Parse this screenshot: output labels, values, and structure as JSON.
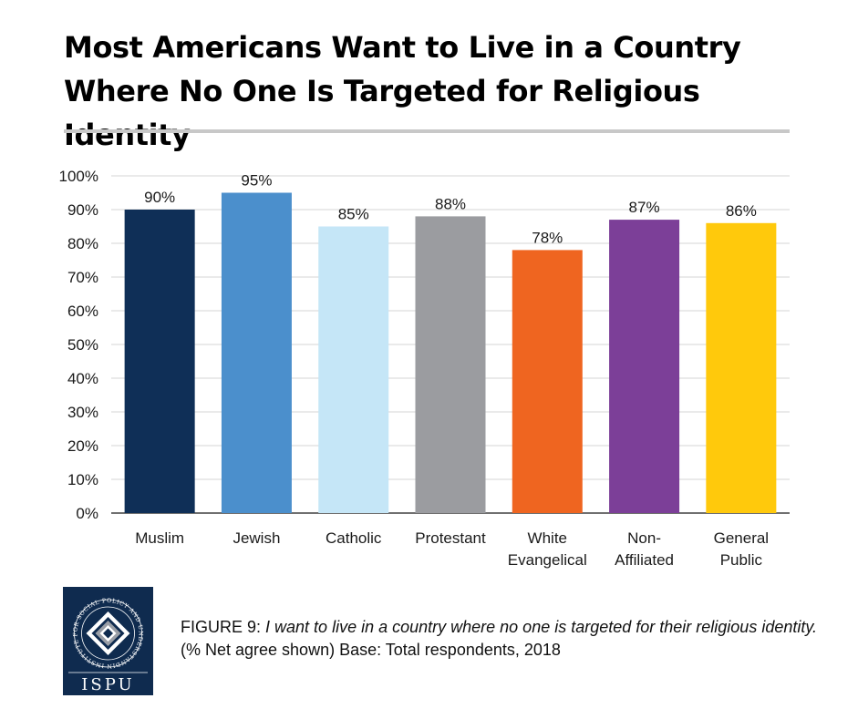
{
  "title": "Most Americans Want to Live in a Country Where No One Is Targeted for Religious Identity",
  "chart_data": {
    "type": "bar",
    "title": "Most Americans Want to Live in a Country Where No One Is Targeted for Religious Identity",
    "xlabel": "",
    "ylabel": "",
    "ylim": [
      0,
      100
    ],
    "y_ticks": [
      "0%",
      "10%",
      "20%",
      "30%",
      "40%",
      "50%",
      "60%",
      "70%",
      "80%",
      "90%",
      "100%"
    ],
    "grid": true,
    "categories": [
      [
        "Muslim"
      ],
      [
        "Jewish"
      ],
      [
        "Catholic"
      ],
      [
        "Protestant"
      ],
      [
        "White",
        "Evangelical"
      ],
      [
        "Non-",
        "Affiliated"
      ],
      [
        "General",
        "Public"
      ]
    ],
    "values": [
      90,
      95,
      85,
      88,
      78,
      87,
      86
    ],
    "value_labels": [
      "90%",
      "95%",
      "85%",
      "88%",
      "78%",
      "87%",
      "86%"
    ],
    "colors": [
      "#0f2f57",
      "#4b8fcc",
      "#c5e6f7",
      "#9b9ca0",
      "#ef6520",
      "#7c3f98",
      "#ffc90c"
    ]
  },
  "caption": {
    "figure": "FIGURE 9",
    "separator": ": ",
    "question": "I want to live in a country where no one is targeted for their religious identity.",
    "note": " (% Net agree shown) Base: Total respondents, 2018"
  },
  "logo": {
    "ring_text": "INSTITUTE FOR SOCIAL POLICY AND UNDERSTANDING",
    "letters": "ISPU"
  }
}
